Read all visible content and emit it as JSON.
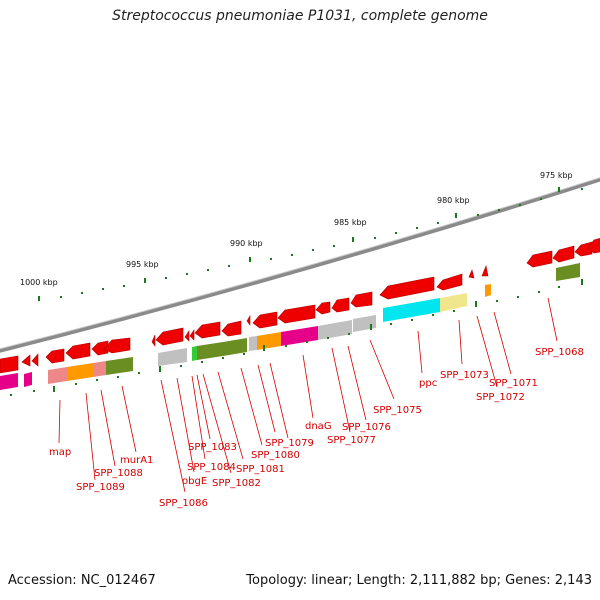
{
  "title": "Streptococcus pneumoniae P1031, complete genome",
  "footer": {
    "accession": "Accession: NC_012467",
    "summary": "Topology: linear; Length: 2,111,882 bp; Genes: 2,143"
  },
  "colors": {
    "backbone": "#8a8a8a",
    "gene_arrow": "#ee0000",
    "tick": "#1a7a1a",
    "label": "#d40000"
  },
  "scale_labels": [
    "1000 kbp",
    "995 kbp",
    "990 kbp",
    "985 kbp",
    "980 kbp",
    "975 kbp"
  ],
  "gene_labels": [
    "map",
    "SPP_1089",
    "SPP_1088",
    "murA1",
    "SPP_1086",
    "obgE",
    "SPP_1084",
    "SPP_1083",
    "SPP_1082",
    "SPP_1081",
    "SPP_1080",
    "SPP_1079",
    "dnaG",
    "SPP_1077",
    "SPP_1076",
    "SPP_1075",
    "ppc",
    "SPP_1073",
    "SPP_1072",
    "SPP_1071",
    "SPP_1068"
  ]
}
